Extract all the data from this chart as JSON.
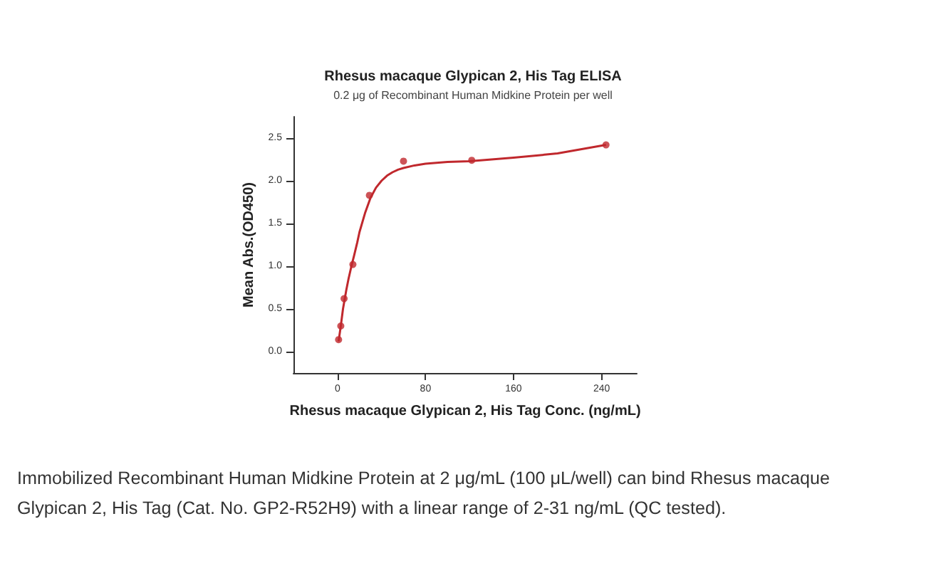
{
  "chart_data": {
    "type": "scatter",
    "title": "Rhesus macaque Glypican 2, His Tag ELISA",
    "subtitle": "0.2 μg of Recombinant Human Midkine Protein per well",
    "xlabel": "Rhesus macaque Glypican 2, His Tag Conc. (ng/mL)",
    "ylabel": "Mean Abs.(OD450)",
    "x": [
      244,
      122,
      60,
      29,
      14,
      6,
      3,
      1
    ],
    "series": [
      {
        "color": "#c0282d",
        "values": [
          2.42,
          2.24,
          2.23,
          1.83,
          1.02,
          0.62,
          0.3,
          0.14
        ]
      },
      {
        "type": "line",
        "marker": "none",
        "color": "#c0282d",
        "x": [
          1,
          3,
          5,
          8,
          10,
          13,
          15,
          18,
          20,
          25,
          30,
          35,
          40,
          45,
          50,
          55,
          60,
          70,
          80,
          100,
          120,
          160,
          200,
          244
        ],
        "values": [
          0.12,
          0.3,
          0.5,
          0.72,
          0.85,
          1.02,
          1.12,
          1.28,
          1.4,
          1.62,
          1.8,
          1.92,
          2.0,
          2.06,
          2.1,
          2.13,
          2.15,
          2.18,
          2.2,
          2.22,
          2.23,
          2.27,
          2.32,
          2.42
        ]
      }
    ],
    "xlim": [
      -40,
      272
    ],
    "xticks": [
      0,
      80,
      160,
      240
    ],
    "ylim": [
      -0.25,
      2.75
    ],
    "yticks": [
      {
        "value": 0,
        "label": "0.0"
      },
      {
        "value": 0.5,
        "label": "0.5"
      },
      {
        "value": 1,
        "label": "1.0"
      },
      {
        "value": 1.5,
        "label": "1.5"
      },
      {
        "value": 2,
        "label": "2.0"
      },
      {
        "value": 2.5,
        "label": "2.5"
      }
    ],
    "marker": "circle",
    "annotations": [
      "Immobilized Recombinant Human Midkine Protein at 2 μg/mL (100 μL/well) can bind Rhesus macaque Glypican 2, His Tag (Cat. No. GP2-R52H9) with a linear range of 2-31 ng/mL (QC tested)."
    ]
  }
}
